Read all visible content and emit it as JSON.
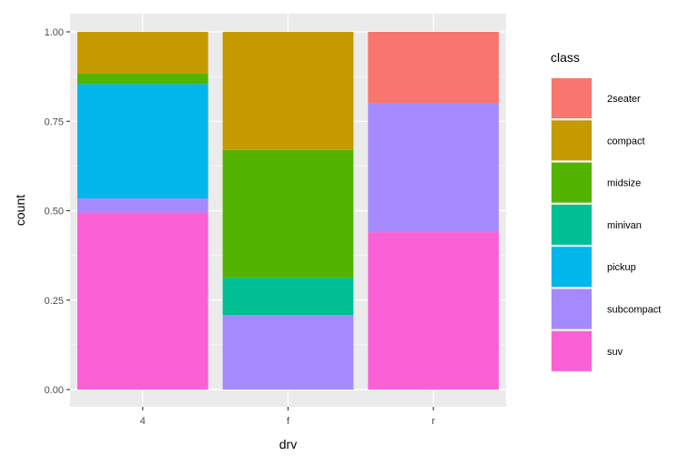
{
  "chart_data": {
    "type": "bar",
    "stacked": "fill",
    "categories": [
      "4",
      "f",
      "r"
    ],
    "xlabel": "drv",
    "ylabel": "count",
    "ylim": [
      0,
      1
    ],
    "yticks": [
      "0.00",
      "0.25",
      "0.50",
      "0.75",
      "1.00"
    ],
    "grid": true,
    "panel_background": "#EBEBEB",
    "legend": {
      "title": "class",
      "position": "right"
    },
    "series": [
      {
        "name": "2seater",
        "color": "#F8766D",
        "values": [
          0.0,
          0.0,
          0.2
        ]
      },
      {
        "name": "compact",
        "color": "#C49A00",
        "values": [
          0.117,
          0.33,
          0.0
        ]
      },
      {
        "name": "midsize",
        "color": "#53B400",
        "values": [
          0.029,
          0.358,
          0.0
        ]
      },
      {
        "name": "minivan",
        "color": "#00C094",
        "values": [
          0.0,
          0.104,
          0.0
        ]
      },
      {
        "name": "pickup",
        "color": "#00B6EB",
        "values": [
          0.32,
          0.0,
          0.0
        ]
      },
      {
        "name": "subcompact",
        "color": "#A58AFF",
        "values": [
          0.039,
          0.208,
          0.36
        ]
      },
      {
        "name": "suv",
        "color": "#FB61D7",
        "values": [
          0.495,
          0.0,
          0.44
        ]
      }
    ]
  }
}
